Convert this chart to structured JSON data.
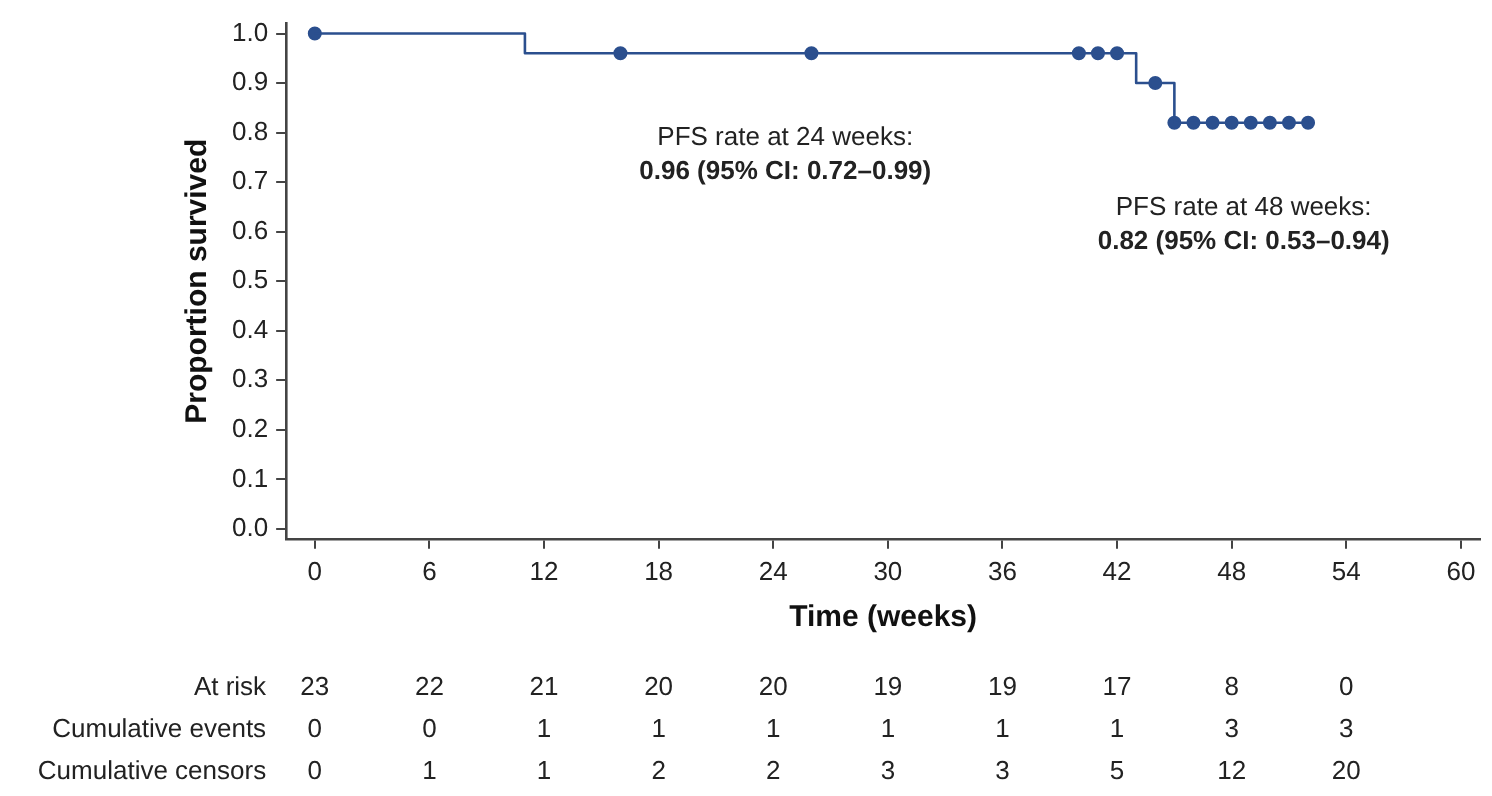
{
  "chart_data": {
    "type": "step",
    "xlabel": "Time (weeks)",
    "ylabel": "Proportion survived",
    "series": [
      {
        "color": "#2b4f8e",
        "marker": "none",
        "x": [
          0,
          11,
          43,
          45,
          52
        ],
        "values": [
          1,
          0.96,
          0.9,
          0.82,
          0.82
        ]
      },
      {
        "type": "scatter",
        "color": "#2b4f8e",
        "marker": "circle",
        "x": [
          0,
          16,
          26,
          40,
          41,
          42,
          44,
          45,
          46,
          47,
          48,
          49,
          50,
          51,
          52
        ],
        "values": [
          1,
          0.96,
          0.96,
          0.96,
          0.96,
          0.96,
          0.9,
          0.82,
          0.82,
          0.82,
          0.82,
          0.82,
          0.82,
          0.82,
          0.82
        ]
      }
    ],
    "xlim": [
      -1.5,
      61
    ],
    "xticks": [
      0,
      6,
      12,
      18,
      24,
      30,
      36,
      42,
      48,
      54,
      60
    ],
    "ylim": [
      -0.02,
      1.02
    ],
    "yticks": [
      {
        "value": 0,
        "label": "0.0"
      },
      {
        "value": 0.1,
        "label": "0.1"
      },
      {
        "value": 0.2,
        "label": "0.2"
      },
      {
        "value": 0.3,
        "label": "0.3"
      },
      {
        "value": 0.4,
        "label": "0.4"
      },
      {
        "value": 0.5,
        "label": "0.5"
      },
      {
        "value": 0.6,
        "label": "0.6"
      },
      {
        "value": 0.7,
        "label": "0.7"
      },
      {
        "value": 0.8,
        "label": "0.8"
      },
      {
        "value": 0.9,
        "label": "0.9"
      },
      {
        "value": 1,
        "label": "1.0"
      }
    ],
    "grid": false,
    "legend": false,
    "annotations": [
      {
        "text": "PFS rate at 24 weeks:\n0.96 (95% CI: 0.72–0.99)",
        "x": 24,
        "y": 0.96
      },
      {
        "text": "PFS rate at 48 weeks:\n0.82 (95% CI: 0.53–0.94)",
        "x": 48,
        "y": 0.82
      },
      "At risk",
      "23",
      "22",
      "21",
      "20",
      "20",
      "19",
      "19",
      "17",
      "8",
      "0",
      "Cumulative events",
      "0",
      "0",
      "1",
      "1",
      "1",
      "1",
      "1",
      "1",
      "3",
      "3",
      "Cumulative censors",
      "0",
      "1",
      "1",
      "2",
      "2",
      "3",
      "3",
      "5",
      "12",
      "20"
    ]
  }
}
